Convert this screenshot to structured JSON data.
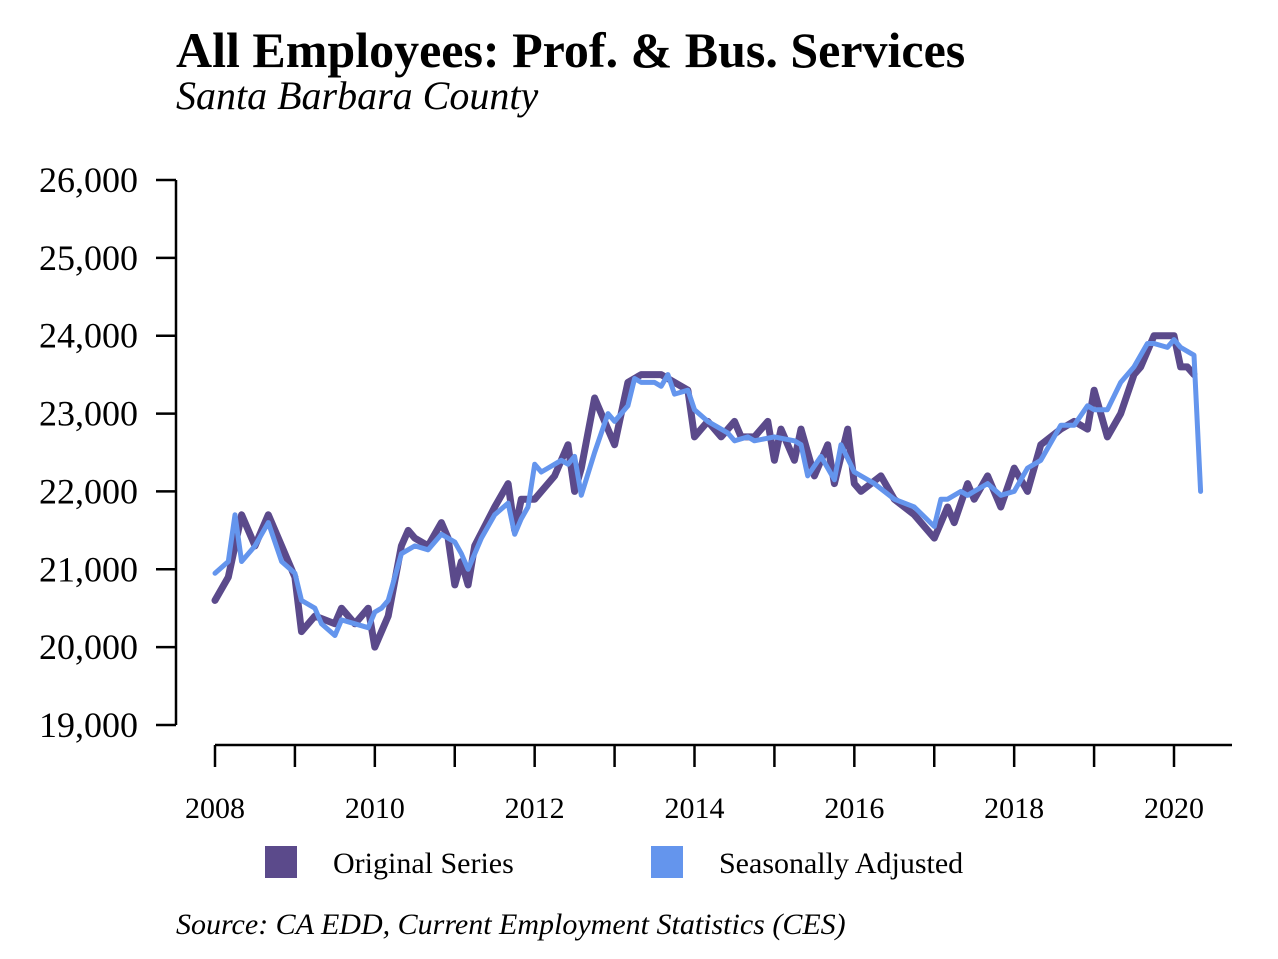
{
  "chart_data": {
    "type": "line",
    "title": "All Employees: Prof. & Bus. Services",
    "subtitle": "Santa Barbara County",
    "source": "Source: CA EDD, Current Employment Statistics (CES)",
    "ylim": [
      19000,
      26000
    ],
    "xlim": [
      2008,
      2020.83
    ],
    "yticks": [
      19000,
      20000,
      21000,
      22000,
      23000,
      24000,
      25000,
      26000
    ],
    "ytick_labels": [
      "19,000",
      "20,000",
      "21,000",
      "22,000",
      "23,000",
      "24,000",
      "25,000",
      "26,000"
    ],
    "xticks": [
      2008,
      2009,
      2010,
      2011,
      2012,
      2013,
      2014,
      2015,
      2016,
      2017,
      2018,
      2019,
      2020
    ],
    "xtick_labels": [
      "2008",
      "",
      "2010",
      "",
      "2012",
      "",
      "2014",
      "",
      "2016",
      "",
      "2018",
      "",
      "2020"
    ],
    "grid": false,
    "legend_position": "bottom",
    "series": [
      {
        "name": "Original Series",
        "color": "#5b4a8b",
        "x": [
          2008.0,
          2008.167,
          2008.25,
          2008.333,
          2008.5,
          2008.583,
          2008.667,
          2008.833,
          2009.0,
          2009.083,
          2009.25,
          2009.5,
          2009.583,
          2009.75,
          2009.917,
          2010.0,
          2010.167,
          2010.333,
          2010.417,
          2010.5,
          2010.667,
          2010.833,
          2010.917,
          2011.0,
          2011.083,
          2011.167,
          2011.25,
          2011.5,
          2011.667,
          2011.75,
          2011.833,
          2012.0,
          2012.25,
          2012.417,
          2012.5,
          2012.583,
          2012.75,
          2013.0,
          2013.083,
          2013.167,
          2013.333,
          2013.583,
          2013.75,
          2013.917,
          2014.0,
          2014.083,
          2014.167,
          2014.333,
          2014.5,
          2014.583,
          2014.75,
          2014.917,
          2015.0,
          2015.083,
          2015.25,
          2015.333,
          2015.5,
          2015.667,
          2015.75,
          2015.917,
          2016.0,
          2016.083,
          2016.333,
          2016.5,
          2016.75,
          2017.0,
          2017.167,
          2017.25,
          2017.417,
          2017.5,
          2017.667,
          2017.833,
          2018.0,
          2018.167,
          2018.333,
          2018.583,
          2018.75,
          2018.917,
          2019.0,
          2019.167,
          2019.333,
          2019.5,
          2019.583,
          2019.75,
          2019.917,
          2020.0,
          2020.083,
          2020.167,
          2020.25
        ],
        "y": [
          20600,
          20900,
          21300,
          21700,
          21300,
          21500,
          21700,
          21300,
          20900,
          20200,
          20400,
          20300,
          20500,
          20300,
          20500,
          20000,
          20400,
          21300,
          21500,
          21400,
          21300,
          21600,
          21400,
          20800,
          21100,
          20800,
          21300,
          21800,
          22100,
          21500,
          21900,
          21900,
          22200,
          22600,
          22000,
          22300,
          23200,
          22600,
          23000,
          23400,
          23500,
          23500,
          23400,
          23300,
          22700,
          22800,
          22900,
          22700,
          22900,
          22700,
          22700,
          22900,
          22400,
          22800,
          22400,
          22800,
          22200,
          22600,
          22100,
          22800,
          22100,
          22000,
          22200,
          21900,
          21700,
          21400,
          21800,
          21600,
          22100,
          21900,
          22200,
          21800,
          22300,
          22000,
          22600,
          22800,
          22900,
          22800,
          23300,
          22700,
          23000,
          23500,
          23600,
          24000,
          24000,
          24000,
          23600,
          23600,
          23500
        ]
      },
      {
        "name": "Seasonally Adjusted",
        "color": "#6495ed",
        "x": [
          2008.0,
          2008.167,
          2008.25,
          2008.333,
          2008.5,
          2008.583,
          2008.667,
          2008.833,
          2009.0,
          2009.083,
          2009.25,
          2009.333,
          2009.5,
          2009.583,
          2009.75,
          2009.917,
          2010.0,
          2010.083,
          2010.167,
          2010.333,
          2010.5,
          2010.667,
          2010.833,
          2011.0,
          2011.083,
          2011.167,
          2011.333,
          2011.5,
          2011.667,
          2011.75,
          2011.833,
          2011.917,
          2012.0,
          2012.083,
          2012.167,
          2012.333,
          2012.417,
          2012.5,
          2012.583,
          2012.75,
          2012.917,
          2013.0,
          2013.167,
          2013.25,
          2013.333,
          2013.5,
          2013.583,
          2013.667,
          2013.75,
          2013.917,
          2014.0,
          2014.167,
          2014.333,
          2014.417,
          2014.5,
          2014.667,
          2014.75,
          2015.0,
          2015.25,
          2015.333,
          2015.417,
          2015.583,
          2015.75,
          2015.833,
          2016.0,
          2016.083,
          2016.25,
          2016.5,
          2016.75,
          2017.0,
          2017.083,
          2017.167,
          2017.333,
          2017.417,
          2017.5,
          2017.667,
          2017.833,
          2018.0,
          2018.167,
          2018.333,
          2018.583,
          2018.75,
          2018.917,
          2019.0,
          2019.167,
          2019.333,
          2019.5,
          2019.667,
          2019.75,
          2019.917,
          2020.0,
          2020.083,
          2020.167,
          2020.25,
          2020.333
        ],
        "y": [
          20950,
          21100,
          21700,
          21100,
          21300,
          21450,
          21600,
          21100,
          20950,
          20600,
          20500,
          20300,
          20150,
          20350,
          20300,
          20250,
          20450,
          20500,
          20600,
          21200,
          21300,
          21250,
          21450,
          21350,
          21200,
          21000,
          21400,
          21700,
          21850,
          21450,
          21650,
          21800,
          22350,
          22250,
          22300,
          22400,
          22350,
          22450,
          21950,
          22500,
          23000,
          22900,
          23100,
          23450,
          23400,
          23400,
          23350,
          23500,
          23250,
          23300,
          23050,
          22900,
          22800,
          22750,
          22650,
          22700,
          22650,
          22700,
          22650,
          22600,
          22200,
          22450,
          22150,
          22600,
          22250,
          22200,
          22100,
          21900,
          21800,
          21550,
          21900,
          21900,
          22000,
          21950,
          22000,
          22100,
          21950,
          22000,
          22300,
          22400,
          22850,
          22850,
          23100,
          23050,
          23050,
          23400,
          23600,
          23900,
          23900,
          23850,
          23950,
          23850,
          23800,
          23750,
          22000
        ]
      }
    ]
  }
}
